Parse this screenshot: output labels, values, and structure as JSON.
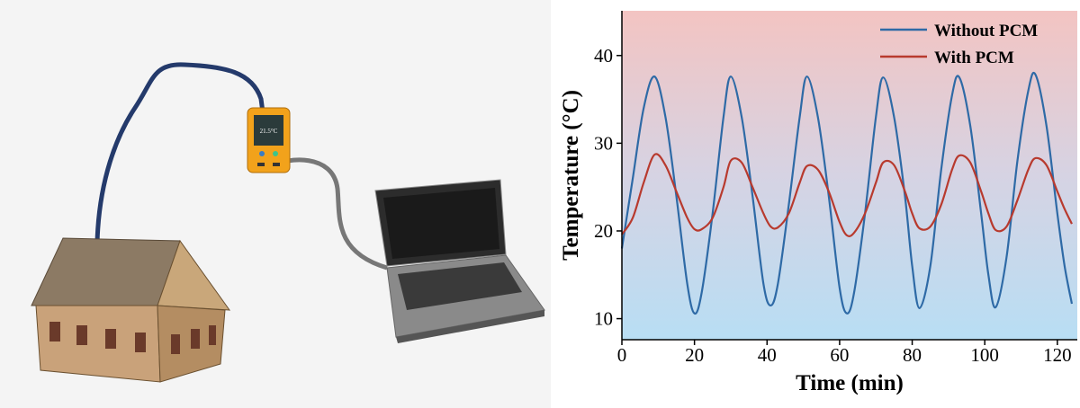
{
  "illustration": {
    "display": "21.5°C"
  },
  "chart_data": {
    "type": "line",
    "xlabel": "Time (min)",
    "ylabel": "Temperature (°C)",
    "xlim": [
      0,
      125.5
    ],
    "ylim": [
      7.6,
      45.1
    ],
    "xticks": [
      0,
      20,
      40,
      60,
      80,
      100,
      120
    ],
    "yticks": [
      10,
      20,
      30,
      40
    ],
    "legend": "upper right",
    "x": [
      0,
      3,
      6,
      9,
      12,
      15,
      18,
      20,
      22,
      25,
      28,
      30,
      33,
      36,
      39,
      41,
      43,
      46,
      49,
      51,
      54,
      57,
      60,
      62,
      64,
      67,
      70,
      72,
      75,
      78,
      80,
      82,
      85,
      88,
      91,
      93,
      96,
      99,
      101,
      103,
      106,
      109,
      112,
      114,
      117,
      120,
      122,
      124
    ],
    "series": [
      {
        "name": "Without PCM",
        "color": "#2e6aa6",
        "values": [
          18,
          26,
          34,
          37.6,
          33,
          24,
          14,
          10.6,
          13,
          22,
          33,
          37.6,
          33,
          24,
          14,
          11.5,
          14,
          23,
          33,
          37.6,
          33,
          24,
          13.5,
          10.6,
          13,
          22,
          33,
          37.5,
          33,
          24,
          16,
          11.2,
          16,
          27,
          35.5,
          37.5,
          32,
          22,
          15,
          11.3,
          17,
          28,
          36,
          37.8,
          32,
          22,
          16,
          11.7
        ]
      },
      {
        "name": "With PCM",
        "color": "#b83a2e",
        "values": [
          19.6,
          21.5,
          25.5,
          28.7,
          27.5,
          24.5,
          21.5,
          20.2,
          20.2,
          21.5,
          25,
          28,
          27.8,
          25,
          22,
          20.5,
          20.4,
          22,
          25.5,
          27.4,
          27,
          24.5,
          21,
          19.5,
          19.8,
          22,
          25.5,
          27.8,
          27.5,
          24.5,
          22,
          20.3,
          20.5,
          23,
          27,
          28.6,
          27.8,
          24.5,
          22,
          20.1,
          20.5,
          23.5,
          27,
          28.3,
          27.5,
          24.5,
          22.5,
          20.8
        ]
      }
    ]
  }
}
